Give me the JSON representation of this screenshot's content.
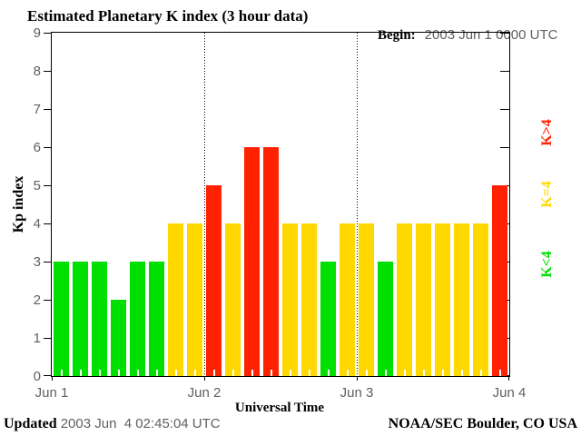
{
  "title": "Estimated Planetary K index (3 hour data)",
  "begin": {
    "label": "Begin:",
    "value": "2003 Jun 1 0000 UTC"
  },
  "footer": {
    "updated_label": "Updated",
    "updated_value": "2003 Jun  4 02:45:04 UTC",
    "source": "NOAA/SEC Boulder, CO USA"
  },
  "chart_data": {
    "type": "bar",
    "title": "Estimated Planetary K index (3 hour data)",
    "xlabel": "Universal Time",
    "ylabel": "Kp index",
    "ylim": [
      0,
      9
    ],
    "y_ticks": [
      0,
      1,
      2,
      3,
      4,
      5,
      6,
      7,
      8,
      9
    ],
    "x_tick_labels": [
      "Jun 1",
      "Jun 2",
      "Jun 3",
      "Jun 4"
    ],
    "bars_per_day": 8,
    "interval_hours": 3,
    "values": [
      3,
      3,
      3,
      2,
      3,
      3,
      4,
      4,
      5,
      4,
      6,
      6,
      4,
      4,
      3,
      4,
      4,
      3,
      4,
      4,
      4,
      4,
      4,
      5
    ],
    "colors": {
      "below4": "#00e000",
      "equal4": "#ffd800",
      "above4": "#ff2200"
    },
    "legend": [
      {
        "label": "K>4",
        "color": "#ff2200"
      },
      {
        "label": "K=4",
        "color": "#ffd800"
      },
      {
        "label": "K<4",
        "color": "#00e000"
      }
    ],
    "grid_lines_at": [
      "Jun 2",
      "Jun 3"
    ],
    "legend_position": "right",
    "grid": "vertical-dotted-day-boundaries"
  }
}
